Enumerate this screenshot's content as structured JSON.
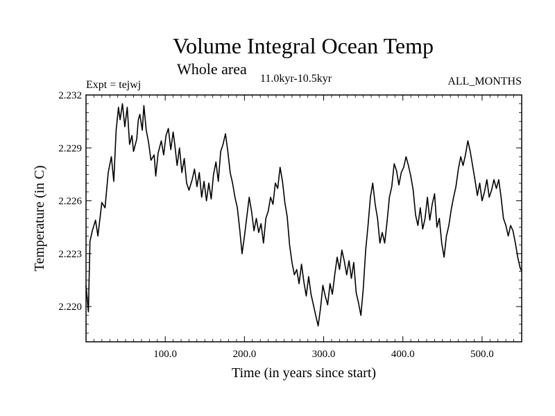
{
  "chart_data": {
    "type": "line",
    "title": "Volume Integral Ocean Temp",
    "subtitle": "Whole area",
    "period_label": "11.0kyr-10.5kyr",
    "experiment_label": "Expt = tejwj",
    "months_label": "ALL_MONTHS",
    "xlabel": "Time (in years since start)",
    "ylabel": "Temperature (in C)",
    "xlim": [
      0,
      550
    ],
    "ylim": [
      2.218,
      2.232
    ],
    "x_ticks": [
      100,
      200,
      300,
      400,
      500
    ],
    "x_tick_labels": [
      "100.0",
      "200.0",
      "300.0",
      "400.0",
      "500.0"
    ],
    "y_ticks": [
      2.22,
      2.223,
      2.226,
      2.229,
      2.232
    ],
    "y_tick_labels": [
      "2.220",
      "2.223",
      "2.226",
      "2.229",
      "2.232"
    ],
    "grid": false,
    "series": [
      {
        "name": "Volume Integral Ocean Temp",
        "color": "#000000",
        "points": [
          [
            0,
            2.2212
          ],
          [
            3,
            2.2197
          ],
          [
            5,
            2.2237
          ],
          [
            8,
            2.2243
          ],
          [
            12,
            2.2249
          ],
          [
            15,
            2.224
          ],
          [
            20,
            2.2259
          ],
          [
            24,
            2.2256
          ],
          [
            28,
            2.2276
          ],
          [
            32,
            2.2285
          ],
          [
            35,
            2.2271
          ],
          [
            38,
            2.23
          ],
          [
            41,
            2.2313
          ],
          [
            43,
            2.2306
          ],
          [
            46,
            2.2315
          ],
          [
            49,
            2.2302
          ],
          [
            52,
            2.2313
          ],
          [
            55,
            2.2292
          ],
          [
            58,
            2.2297
          ],
          [
            60,
            2.2288
          ],
          [
            64,
            2.2295
          ],
          [
            66,
            2.2306
          ],
          [
            68,
            2.2309
          ],
          [
            71,
            2.23
          ],
          [
            73,
            2.2314
          ],
          [
            76,
            2.23
          ],
          [
            79,
            2.2293
          ],
          [
            82,
            2.2283
          ],
          [
            86,
            2.2286
          ],
          [
            88,
            2.2274
          ],
          [
            91,
            2.2287
          ],
          [
            95,
            2.2294
          ],
          [
            98,
            2.2286
          ],
          [
            101,
            2.2297
          ],
          [
            104,
            2.2301
          ],
          [
            107,
            2.2289
          ],
          [
            110,
            2.2299
          ],
          [
            112,
            2.2292
          ],
          [
            115,
            2.228
          ],
          [
            118,
            2.229
          ],
          [
            121,
            2.2276
          ],
          [
            124,
            2.2284
          ],
          [
            127,
            2.227
          ],
          [
            130,
            2.2266
          ],
          [
            134,
            2.2272
          ],
          [
            137,
            2.2278
          ],
          [
            140,
            2.2268
          ],
          [
            143,
            2.2276
          ],
          [
            146,
            2.2262
          ],
          [
            149,
            2.2271
          ],
          [
            152,
            2.226
          ],
          [
            155,
            2.227
          ],
          [
            158,
            2.2261
          ],
          [
            161,
            2.2275
          ],
          [
            164,
            2.2282
          ],
          [
            167,
            2.2271
          ],
          [
            170,
            2.2288
          ],
          [
            173,
            2.2292
          ],
          [
            176,
            2.2298
          ],
          [
            179,
            2.2288
          ],
          [
            182,
            2.2276
          ],
          [
            185,
            2.227
          ],
          [
            188,
            2.2262
          ],
          [
            191,
            2.2256
          ],
          [
            194,
            2.2244
          ],
          [
            197,
            2.223
          ],
          [
            200,
            2.224
          ],
          [
            203,
            2.2251
          ],
          [
            206,
            2.2262
          ],
          [
            209,
            2.2254
          ],
          [
            212,
            2.2243
          ],
          [
            215,
            2.225
          ],
          [
            218,
            2.2242
          ],
          [
            221,
            2.2247
          ],
          [
            224,
            2.2236
          ],
          [
            227,
            2.225
          ],
          [
            230,
            2.2254
          ],
          [
            233,
            2.2262
          ],
          [
            236,
            2.2258
          ],
          [
            239,
            2.227
          ],
          [
            242,
            2.2267
          ],
          [
            245,
            2.2279
          ],
          [
            248,
            2.2271
          ],
          [
            251,
            2.2259
          ],
          [
            254,
            2.2251
          ],
          [
            257,
            2.2235
          ],
          [
            260,
            2.2225
          ],
          [
            263,
            2.2218
          ],
          [
            266,
            2.2221
          ],
          [
            269,
            2.2213
          ],
          [
            272,
            2.2224
          ],
          [
            275,
            2.2214
          ],
          [
            278,
            2.2206
          ],
          [
            281,
            2.2217
          ],
          [
            284,
            2.2207
          ],
          [
            287,
            2.2201
          ],
          [
            290,
            2.2195
          ],
          [
            293,
            2.2189
          ],
          [
            296,
            2.2199
          ],
          [
            299,
            2.2212
          ],
          [
            302,
            2.2206
          ],
          [
            305,
            2.2201
          ],
          [
            308,
            2.2213
          ],
          [
            311,
            2.2207
          ],
          [
            314,
            2.2218
          ],
          [
            317,
            2.2228
          ],
          [
            320,
            2.2221
          ],
          [
            323,
            2.2232
          ],
          [
            326,
            2.2226
          ],
          [
            329,
            2.2218
          ],
          [
            332,
            2.2226
          ],
          [
            335,
            2.2216
          ],
          [
            338,
            2.2225
          ],
          [
            341,
            2.2208
          ],
          [
            344,
            2.2202
          ],
          [
            347,
            2.2195
          ],
          [
            350,
            2.221
          ],
          [
            353,
            2.2232
          ],
          [
            356,
            2.2246
          ],
          [
            359,
            2.2262
          ],
          [
            362,
            2.227
          ],
          [
            365,
            2.2258
          ],
          [
            368,
            2.225
          ],
          [
            371,
            2.2236
          ],
          [
            374,
            2.2242
          ],
          [
            377,
            2.2236
          ],
          [
            380,
            2.2248
          ],
          [
            383,
            2.2262
          ],
          [
            386,
            2.2268
          ],
          [
            389,
            2.2281
          ],
          [
            392,
            2.2277
          ],
          [
            395,
            2.2269
          ],
          [
            398,
            2.2276
          ],
          [
            401,
            2.2279
          ],
          [
            404,
            2.2285
          ],
          [
            407,
            2.228
          ],
          [
            410,
            2.2274
          ],
          [
            413,
            2.2266
          ],
          [
            416,
            2.2252
          ],
          [
            419,
            2.2246
          ],
          [
            422,
            2.2256
          ],
          [
            425,
            2.2244
          ],
          [
            428,
            2.225
          ],
          [
            431,
            2.2262
          ],
          [
            434,
            2.2249
          ],
          [
            437,
            2.2258
          ],
          [
            440,
            2.2264
          ],
          [
            443,
            2.2245
          ],
          [
            446,
            2.225
          ],
          [
            449,
            2.2236
          ],
          [
            452,
            2.2228
          ],
          [
            455,
            2.224
          ],
          [
            458,
            2.2246
          ],
          [
            461,
            2.2255
          ],
          [
            464,
            2.2262
          ],
          [
            467,
            2.2268
          ],
          [
            470,
            2.2278
          ],
          [
            473,
            2.2285
          ],
          [
            476,
            2.228
          ],
          [
            479,
            2.2286
          ],
          [
            482,
            2.2294
          ],
          [
            485,
            2.2288
          ],
          [
            488,
            2.228
          ],
          [
            491,
            2.2272
          ],
          [
            494,
            2.2263
          ],
          [
            497,
            2.227
          ],
          [
            500,
            2.226
          ],
          [
            503,
            2.2265
          ],
          [
            506,
            2.2272
          ],
          [
            509,
            2.2262
          ],
          [
            512,
            2.2266
          ],
          [
            515,
            2.2272
          ],
          [
            518,
            2.2267
          ],
          [
            521,
            2.2272
          ],
          [
            524,
            2.2262
          ],
          [
            527,
            2.225
          ],
          [
            530,
            2.2246
          ],
          [
            533,
            2.224
          ],
          [
            536,
            2.2246
          ],
          [
            539,
            2.2243
          ],
          [
            542,
            2.2236
          ],
          [
            545,
            2.2228
          ],
          [
            548,
            2.2222
          ],
          [
            550,
            2.222
          ]
        ]
      }
    ]
  }
}
